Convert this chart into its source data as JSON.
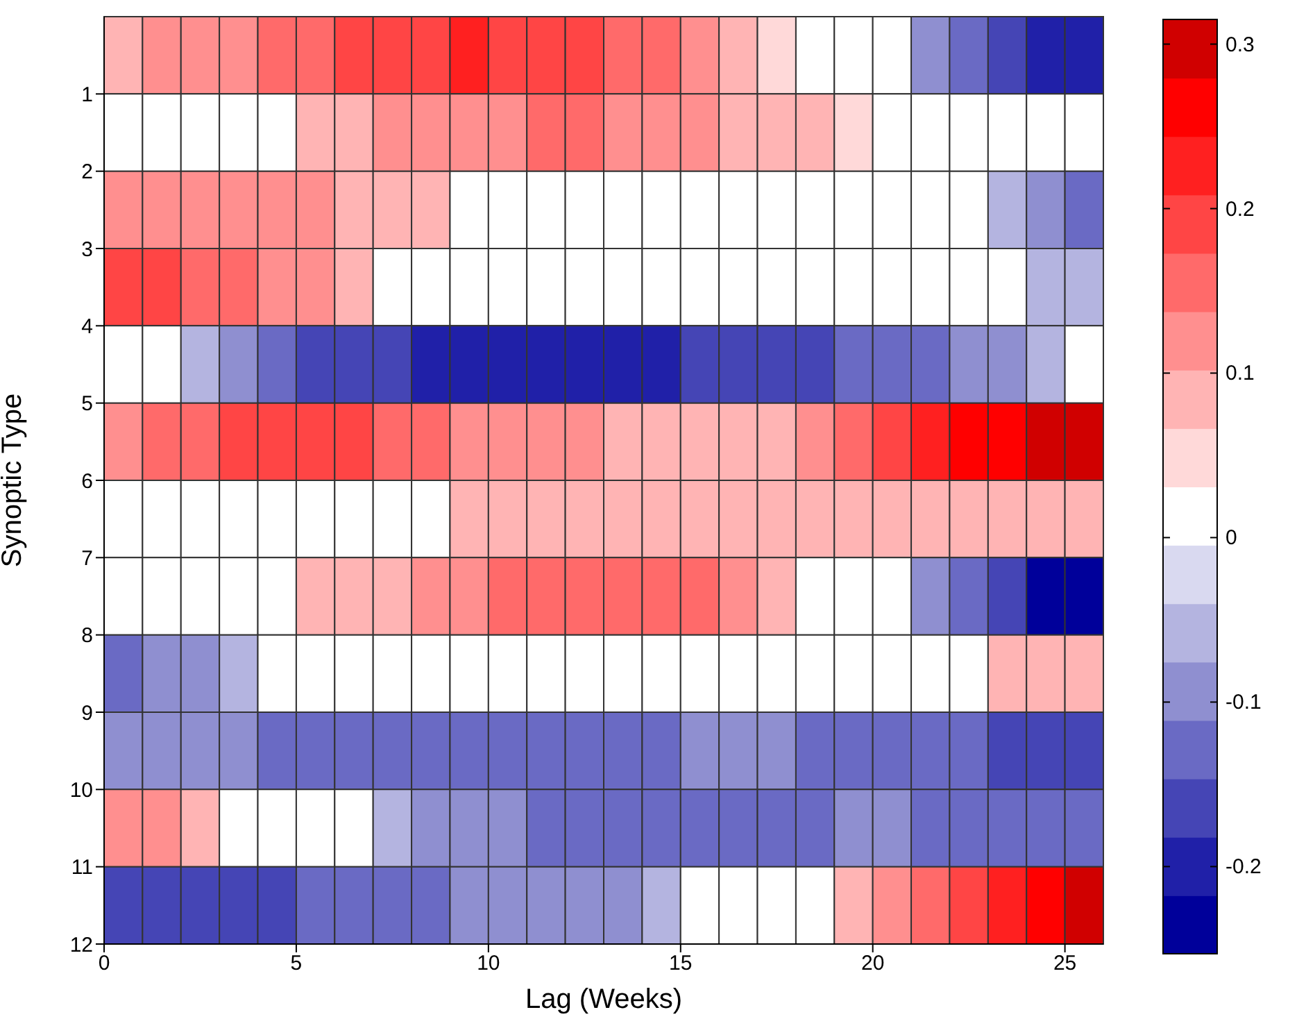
{
  "chart_data": {
    "type": "heatmap",
    "xlabel": "Lag (Weeks)",
    "ylabel": "Synoptic Type",
    "xlim": [
      0,
      26
    ],
    "xticks": [
      0,
      5,
      10,
      15,
      20,
      25
    ],
    "ylim": [
      12,
      0
    ],
    "yticks": [
      1,
      2,
      3,
      4,
      5,
      6,
      7,
      8,
      9,
      10,
      11,
      12
    ],
    "clim": [
      -0.253,
      0.315
    ],
    "cticks": [
      -0.2,
      -0.1,
      0,
      0.1,
      0.2,
      0.3
    ],
    "cells": [
      [
        0.08,
        0.12,
        0.12,
        0.12,
        0.16,
        0.16,
        0.19,
        0.19,
        0.19,
        0.23,
        0.19,
        0.19,
        0.19,
        0.16,
        0.16,
        0.12,
        0.08,
        0.05,
        0.01,
        0.01,
        0.01,
        -0.09,
        -0.13,
        -0.16,
        -0.2,
        -0.2
      ],
      [
        0.01,
        0.01,
        0.01,
        0.01,
        0.01,
        0.08,
        0.08,
        0.12,
        0.12,
        0.12,
        0.12,
        0.16,
        0.16,
        0.12,
        0.12,
        0.12,
        0.08,
        0.08,
        0.08,
        0.05,
        0.01,
        0.01,
        0.01,
        0.01,
        0.01,
        0.01
      ],
      [
        0.12,
        0.12,
        0.12,
        0.12,
        0.12,
        0.12,
        0.08,
        0.08,
        0.08,
        0.01,
        0.01,
        0.01,
        0.01,
        0.01,
        0.01,
        0.01,
        0.01,
        0.01,
        0.01,
        0.01,
        0.01,
        0.01,
        0.01,
        -0.06,
        -0.09,
        -0.13
      ],
      [
        0.19,
        0.19,
        0.16,
        0.16,
        0.12,
        0.12,
        0.08,
        0.01,
        0.01,
        0.01,
        0.01,
        0.01,
        0.01,
        0.01,
        0.01,
        0.01,
        0.01,
        0.01,
        0.01,
        0.01,
        0.01,
        0.01,
        0.01,
        0.01,
        -0.06,
        -0.06
      ],
      [
        0.01,
        0.01,
        -0.06,
        -0.09,
        -0.13,
        -0.16,
        -0.16,
        -0.16,
        -0.2,
        -0.2,
        -0.2,
        -0.2,
        -0.2,
        -0.2,
        -0.2,
        -0.16,
        -0.16,
        -0.16,
        -0.16,
        -0.13,
        -0.13,
        -0.13,
        -0.09,
        -0.09,
        -0.06,
        0.01
      ],
      [
        0.12,
        0.16,
        0.16,
        0.19,
        0.19,
        0.19,
        0.19,
        0.16,
        0.16,
        0.12,
        0.12,
        0.12,
        0.12,
        0.08,
        0.08,
        0.08,
        0.08,
        0.08,
        0.12,
        0.16,
        0.19,
        0.23,
        0.26,
        0.26,
        0.3,
        0.3
      ],
      [
        0.01,
        0.01,
        0.01,
        0.01,
        0.01,
        0.01,
        0.01,
        0.01,
        0.01,
        0.08,
        0.08,
        0.08,
        0.08,
        0.08,
        0.08,
        0.08,
        0.08,
        0.08,
        0.08,
        0.08,
        0.08,
        0.08,
        0.08,
        0.08,
        0.08,
        0.08
      ],
      [
        0.01,
        0.01,
        0.01,
        0.01,
        0.01,
        0.08,
        0.08,
        0.08,
        0.12,
        0.12,
        0.16,
        0.16,
        0.16,
        0.16,
        0.16,
        0.16,
        0.12,
        0.08,
        0.01,
        0.01,
        0.01,
        -0.09,
        -0.13,
        -0.16,
        -0.23,
        -0.23
      ],
      [
        -0.13,
        -0.09,
        -0.09,
        -0.06,
        0.01,
        0.01,
        0.01,
        0.01,
        0.01,
        0.01,
        0.01,
        0.01,
        0.01,
        0.01,
        0.01,
        0.01,
        0.01,
        0.01,
        0.01,
        0.01,
        0.01,
        0.01,
        0.01,
        0.08,
        0.08,
        0.08
      ],
      [
        -0.09,
        -0.09,
        -0.09,
        -0.09,
        -0.13,
        -0.13,
        -0.13,
        -0.13,
        -0.13,
        -0.13,
        -0.13,
        -0.13,
        -0.13,
        -0.13,
        -0.13,
        -0.09,
        -0.09,
        -0.09,
        -0.13,
        -0.13,
        -0.13,
        -0.13,
        -0.13,
        -0.16,
        -0.16,
        -0.16
      ],
      [
        0.12,
        0.12,
        0.08,
        0.01,
        0.01,
        0.01,
        0.01,
        -0.06,
        -0.09,
        -0.09,
        -0.09,
        -0.13,
        -0.13,
        -0.13,
        -0.13,
        -0.13,
        -0.13,
        -0.13,
        -0.13,
        -0.09,
        -0.09,
        -0.13,
        -0.13,
        -0.13,
        -0.13,
        -0.13
      ],
      [
        -0.16,
        -0.16,
        -0.16,
        -0.16,
        -0.16,
        -0.13,
        -0.13,
        -0.13,
        -0.13,
        -0.09,
        -0.09,
        -0.09,
        -0.09,
        -0.09,
        -0.06,
        0.01,
        0.01,
        0.01,
        0.01,
        0.08,
        0.12,
        0.16,
        0.19,
        0.23,
        0.26,
        0.3
      ]
    ]
  }
}
